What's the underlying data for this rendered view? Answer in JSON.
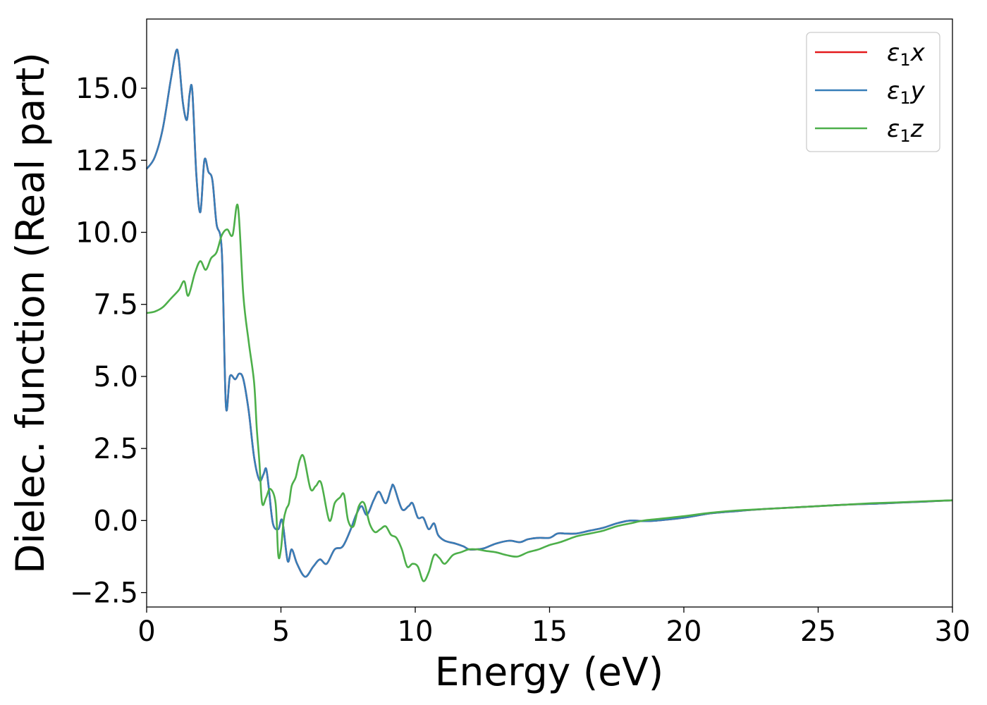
{
  "chart_data": {
    "type": "line",
    "title": "",
    "xlabel": "Energy (eV)",
    "ylabel": "Dielec. function (Real part)",
    "xlim": [
      0,
      30
    ],
    "ylim": [
      -3.0,
      17.4
    ],
    "xticks": [
      0,
      5,
      10,
      15,
      20,
      25,
      30
    ],
    "xtick_labels": [
      "0",
      "5",
      "10",
      "15",
      "20",
      "25",
      "30"
    ],
    "yticks": [
      -2.5,
      0.0,
      2.5,
      5.0,
      7.5,
      10.0,
      12.5,
      15.0
    ],
    "ytick_labels": [
      "−2.5",
      "0.0",
      "2.5",
      "5.0",
      "7.5",
      "10.0",
      "12.5",
      "15.0"
    ],
    "grid": false,
    "legend": {
      "placement": "top-right",
      "entries": [
        {
          "symbol": "ε",
          "sub": "1",
          "suffix": "x",
          "color": "#e41a1c"
        },
        {
          "symbol": "ε",
          "sub": "1",
          "suffix": "y",
          "color": "#377eb8"
        },
        {
          "symbol": "ε",
          "sub": "1",
          "suffix": "z",
          "color": "#4daf4a"
        }
      ]
    },
    "series": [
      {
        "key": "x",
        "color": "#e41a1c",
        "x": [
          0,
          0.3,
          0.6,
          0.9,
          1.1,
          1.2,
          1.35,
          1.5,
          1.6,
          1.7,
          1.85,
          2.0,
          2.15,
          2.3,
          2.45,
          2.6,
          2.8,
          2.95,
          3.1,
          3.3,
          3.45,
          3.6,
          3.8,
          4.0,
          4.2,
          4.35,
          4.45,
          4.55,
          4.7,
          4.9,
          5.05,
          5.25,
          5.4,
          5.6,
          5.9,
          6.2,
          6.45,
          6.7,
          7.0,
          7.3,
          7.6,
          7.8,
          8.0,
          8.2,
          8.45,
          8.65,
          8.9,
          9.1,
          9.2,
          9.5,
          9.75,
          9.9,
          10.1,
          10.3,
          10.5,
          10.7,
          10.85,
          11.1,
          11.5,
          11.8,
          12.0,
          12.3,
          12.6,
          13.0,
          13.5,
          13.9,
          14.2,
          14.6,
          15.0,
          15.3,
          15.6,
          16.0,
          16.5,
          17.0,
          17.5,
          18.0,
          18.5,
          19.0,
          20.0,
          21.0,
          22.0,
          23.0,
          24.0,
          25.0,
          26.0,
          27.0,
          28.0,
          29.0,
          30.0
        ],
        "y": [
          12.2,
          12.6,
          13.6,
          15.3,
          16.3,
          16.0,
          14.5,
          13.9,
          14.8,
          14.9,
          12.0,
          10.7,
          12.5,
          12.1,
          11.8,
          10.3,
          9.3,
          4.0,
          5.0,
          4.9,
          5.1,
          4.9,
          3.8,
          2.2,
          1.4,
          1.6,
          1.8,
          1.1,
          -0.1,
          -0.3,
          0.0,
          -1.4,
          -1.0,
          -1.5,
          -1.95,
          -1.6,
          -1.35,
          -1.5,
          -1.0,
          -0.9,
          -0.3,
          0.2,
          0.5,
          0.2,
          0.7,
          1.0,
          0.6,
          1.1,
          1.2,
          0.4,
          0.5,
          0.6,
          0.1,
          0.1,
          -0.3,
          -0.1,
          -0.5,
          -0.7,
          -0.8,
          -0.9,
          -1.0,
          -1.0,
          -0.95,
          -0.8,
          -0.7,
          -0.75,
          -0.65,
          -0.6,
          -0.6,
          -0.45,
          -0.45,
          -0.45,
          -0.35,
          -0.25,
          -0.1,
          0.0,
          -0.02,
          0.0,
          0.1,
          0.25,
          0.33,
          0.4,
          0.45,
          0.5,
          0.55,
          0.58,
          0.62,
          0.66,
          0.7
        ]
      },
      {
        "key": "y",
        "color": "#377eb8",
        "x": [
          0,
          0.3,
          0.6,
          0.9,
          1.1,
          1.2,
          1.35,
          1.5,
          1.6,
          1.7,
          1.85,
          2.0,
          2.15,
          2.3,
          2.45,
          2.6,
          2.8,
          2.95,
          3.1,
          3.3,
          3.45,
          3.6,
          3.8,
          4.0,
          4.2,
          4.35,
          4.45,
          4.55,
          4.7,
          4.9,
          5.05,
          5.25,
          5.4,
          5.6,
          5.9,
          6.2,
          6.45,
          6.7,
          7.0,
          7.3,
          7.6,
          7.8,
          8.0,
          8.2,
          8.45,
          8.65,
          8.9,
          9.1,
          9.2,
          9.5,
          9.75,
          9.9,
          10.1,
          10.3,
          10.5,
          10.7,
          10.85,
          11.1,
          11.5,
          11.8,
          12.0,
          12.3,
          12.6,
          13.0,
          13.5,
          13.9,
          14.2,
          14.6,
          15.0,
          15.3,
          15.6,
          16.0,
          16.5,
          17.0,
          17.5,
          18.0,
          18.5,
          19.0,
          20.0,
          21.0,
          22.0,
          23.0,
          24.0,
          25.0,
          26.0,
          27.0,
          28.0,
          29.0,
          30.0
        ],
        "y": [
          12.2,
          12.6,
          13.6,
          15.3,
          16.3,
          16.0,
          14.5,
          13.9,
          14.8,
          14.9,
          12.0,
          10.7,
          12.5,
          12.1,
          11.8,
          10.3,
          9.3,
          4.0,
          5.0,
          4.9,
          5.1,
          4.9,
          3.8,
          2.2,
          1.4,
          1.6,
          1.8,
          1.1,
          -0.1,
          -0.3,
          0.0,
          -1.4,
          -1.0,
          -1.5,
          -1.95,
          -1.6,
          -1.35,
          -1.5,
          -1.0,
          -0.9,
          -0.3,
          0.2,
          0.5,
          0.2,
          0.7,
          1.0,
          0.6,
          1.1,
          1.2,
          0.4,
          0.5,
          0.6,
          0.1,
          0.1,
          -0.3,
          -0.1,
          -0.5,
          -0.7,
          -0.8,
          -0.9,
          -1.0,
          -1.0,
          -0.95,
          -0.8,
          -0.7,
          -0.75,
          -0.65,
          -0.6,
          -0.6,
          -0.45,
          -0.45,
          -0.45,
          -0.35,
          -0.25,
          -0.1,
          0.0,
          -0.02,
          0.0,
          0.1,
          0.25,
          0.33,
          0.4,
          0.45,
          0.5,
          0.55,
          0.58,
          0.62,
          0.66,
          0.7
        ]
      },
      {
        "key": "z",
        "color": "#4daf4a",
        "x": [
          0,
          0.3,
          0.6,
          0.9,
          1.2,
          1.4,
          1.55,
          1.8,
          2.0,
          2.2,
          2.4,
          2.6,
          2.8,
          3.0,
          3.2,
          3.4,
          3.6,
          3.8,
          4.0,
          4.1,
          4.2,
          4.3,
          4.45,
          4.6,
          4.8,
          4.9,
          5.0,
          5.1,
          5.2,
          5.3,
          5.4,
          5.55,
          5.7,
          5.85,
          6.1,
          6.3,
          6.5,
          6.8,
          7.0,
          7.2,
          7.35,
          7.5,
          7.7,
          7.9,
          8.1,
          8.3,
          8.5,
          8.7,
          8.9,
          9.1,
          9.3,
          9.5,
          9.7,
          9.9,
          10.1,
          10.3,
          10.5,
          10.7,
          10.9,
          11.1,
          11.4,
          11.7,
          12.0,
          12.3,
          12.6,
          13.0,
          13.4,
          13.8,
          14.2,
          14.6,
          15.0,
          15.4,
          16.0,
          16.5,
          17.0,
          17.5,
          18.0,
          18.5,
          19.0,
          20.0,
          21.0,
          22.0,
          23.0,
          24.0,
          25.0,
          26.0,
          27.0,
          28.0,
          29.0,
          30.0
        ],
        "y": [
          7.2,
          7.25,
          7.4,
          7.7,
          8.0,
          8.3,
          7.8,
          8.6,
          9.0,
          8.7,
          9.1,
          9.3,
          9.9,
          10.1,
          9.9,
          10.9,
          7.8,
          6.2,
          4.8,
          3.2,
          2.0,
          0.6,
          0.8,
          1.1,
          0.6,
          -1.2,
          -1.0,
          0.0,
          0.4,
          0.6,
          1.2,
          1.5,
          2.1,
          2.2,
          1.1,
          1.2,
          1.3,
          0.0,
          0.6,
          0.8,
          0.9,
          0.0,
          -0.2,
          0.5,
          0.6,
          -0.1,
          -0.4,
          -0.3,
          -0.2,
          -0.5,
          -0.6,
          -1.0,
          -1.6,
          -1.5,
          -1.6,
          -2.1,
          -1.8,
          -1.2,
          -1.3,
          -1.5,
          -1.2,
          -1.1,
          -1.0,
          -1.0,
          -1.05,
          -1.1,
          -1.2,
          -1.25,
          -1.1,
          -1.0,
          -0.85,
          -0.75,
          -0.55,
          -0.45,
          -0.35,
          -0.2,
          -0.1,
          0.0,
          0.05,
          0.15,
          0.27,
          0.35,
          0.4,
          0.45,
          0.5,
          0.55,
          0.6,
          0.63,
          0.67,
          0.7
        ]
      }
    ]
  }
}
